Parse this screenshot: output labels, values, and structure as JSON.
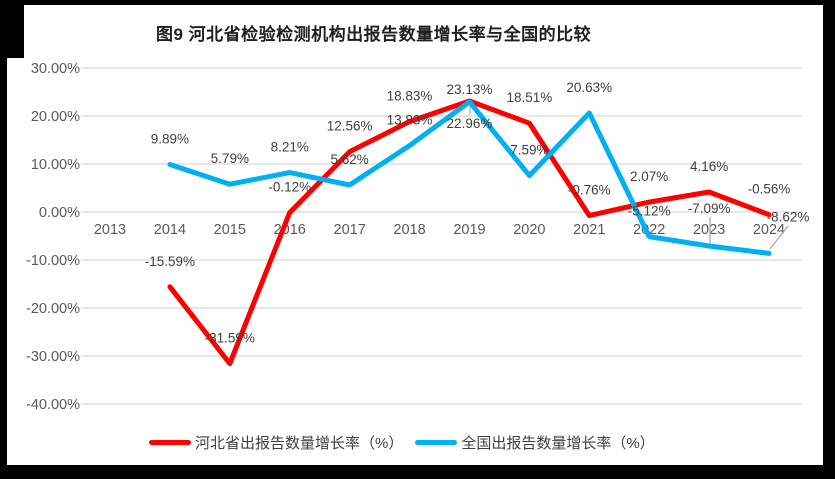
{
  "title": "图9 河北省检验检测机构出报告数量增长率与全国的比较",
  "colors": {
    "hebei_line": "#FF0000",
    "national_line": "#00B0F0",
    "gridline": "#D9D9D9",
    "data_label_text": "#404040",
    "axis_text": "#595959",
    "leader_line": "#A6A6A6",
    "frame": "#000000"
  },
  "chart_data": {
    "type": "line",
    "title": "图9 河北省检验检测机构出报告数量增长率与全国的比较",
    "categories": [
      "2013",
      "2014",
      "2015",
      "2016",
      "2017",
      "2018",
      "2019",
      "2020",
      "2021",
      "2022",
      "2023",
      "2024"
    ],
    "series": [
      {
        "name": "河北省出报告数量增长率（%）",
        "color": "#FF0000",
        "values": [
          null,
          -15.59,
          -31.59,
          -0.12,
          12.56,
          18.83,
          23.13,
          18.51,
          -0.76,
          2.07,
          4.16,
          -0.56
        ]
      },
      {
        "name": "全国出报告数量增长率（%）",
        "color": "#00B0F0",
        "values": [
          null,
          9.89,
          5.79,
          8.21,
          5.62,
          13.83,
          22.96,
          7.59,
          20.63,
          -5.12,
          -7.09,
          -8.62
        ]
      }
    ],
    "y_ticks": [
      "30.00%",
      "20.00%",
      "10.00%",
      "0.00%",
      "-10.00%",
      "-20.00%",
      "-30.00%",
      "-40.00%"
    ],
    "ylim": [
      -40,
      30
    ],
    "y_step": 10,
    "grid": true,
    "data_labels": true,
    "label_format": "0.00%",
    "legend_position": "bottom"
  }
}
